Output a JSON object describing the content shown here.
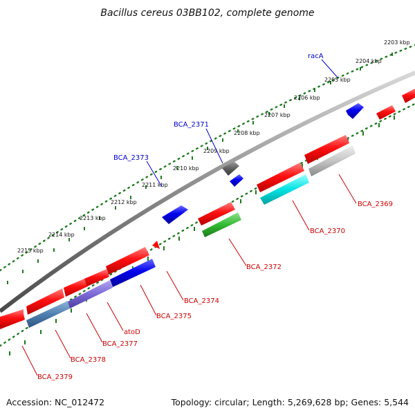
{
  "title": "Bacillus cereus 03BB102, complete genome",
  "footer": {
    "accession": "Accession: NC_012472",
    "summary": "Topology: circular; Length: 5,269,628 bp; Genes: 5,544"
  },
  "colors": {
    "backbone": "#8a8a8a",
    "dots": "#1e7a1e",
    "label_forward": "#0000cc",
    "label_reverse": "#cc0000"
  },
  "kbp_labels": [
    "2203 kbp",
    "2204 kbp",
    "2205 kbp",
    "2206 kbp",
    "2207 kbp",
    "2208 kbp",
    "2209 kbp",
    "2210 kbp",
    "2211 kbp",
    "2212 kbp",
    "2213 kbp",
    "2214 kbp",
    "2215 kbp"
  ],
  "genes": [
    {
      "name": "racA",
      "color": "#0000ee",
      "strand": "forward"
    },
    {
      "name": "BCA_2371",
      "color": "#606060",
      "strand": "forward"
    },
    {
      "name": "BCA_2373",
      "color": "#0000ee",
      "strand": "forward"
    },
    {
      "name": "BCA_2369",
      "color": "#bdbdbd",
      "strand": "reverse"
    },
    {
      "name": "BCA_2370",
      "color": "#00dddd",
      "strand": "reverse"
    },
    {
      "name": "BCA_2372",
      "color": "#33bb33",
      "strand": "reverse"
    },
    {
      "name": "BCA_2374",
      "color": "#ee0000",
      "strand": "reverse"
    },
    {
      "name": "BCA_2375",
      "color": "#0000ee",
      "strand": "reverse"
    },
    {
      "name": "atoD",
      "color": "#7b68d6",
      "strand": "reverse"
    },
    {
      "name": "BCA_2377",
      "color": "#7b68d6",
      "strand": "reverse"
    },
    {
      "name": "BCA_2378",
      "color": "#4f7fb0",
      "strand": "reverse"
    },
    {
      "name": "BCA_2379",
      "color": "#ee0000",
      "strand": "reverse"
    }
  ]
}
